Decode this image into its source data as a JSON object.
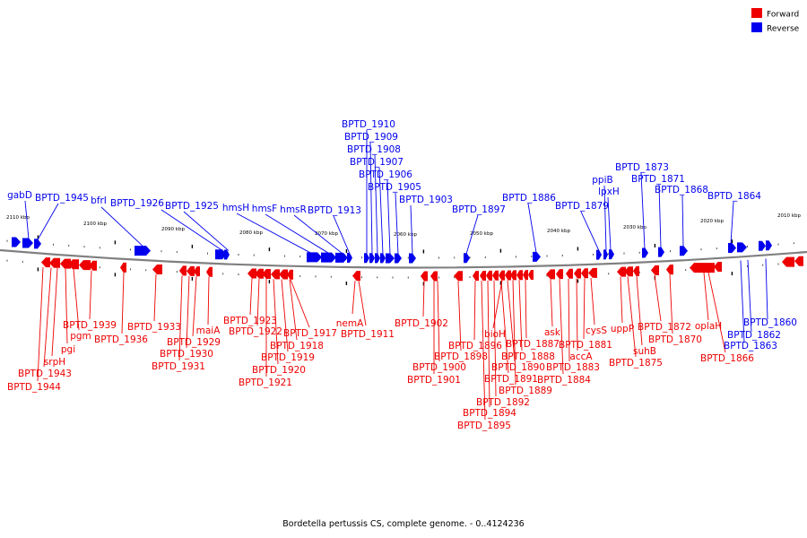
{
  "caption": "Bordetella pertussis CS, complete genome. - 0..4124236",
  "legend": {
    "forward_label": "Forward",
    "reverse_label": "Reverse",
    "forward_color": "#ee0000",
    "reverse_color": "#0000ee"
  },
  "colors": {
    "forward": "#ee0000",
    "reverse": "#0000ee",
    "backbone": "#808080"
  },
  "ticks": [
    "2110 kbp",
    "2100 kbp",
    "2090 kbp",
    "2080 kbp",
    "2070 kbp",
    "2060 kbp",
    "2050 kbp",
    "2040 kbp",
    "2030 kbp",
    "2020 kbp",
    "2010 kbp"
  ],
  "reverse_labels": [
    "gabD",
    "BPTD_1945",
    "bfrI",
    "BPTD_1926",
    "BPTD_1925",
    "hmsH",
    "hmsF",
    "hmsR",
    "BPTD_1913",
    "BPTD_1910",
    "BPTD_1909",
    "BPTD_1908",
    "BPTD_1907",
    "BPTD_1906",
    "BPTD_1905",
    "BPTD_1903",
    "BPTD_1897",
    "BPTD_1886",
    "BPTD_1879",
    "ppiB",
    "lpxH",
    "BPTD_1873",
    "BPTD_1871",
    "BPTD_1868",
    "BPTD_1864",
    "BPTD_1860",
    "BPTD_1862",
    "BPTD_1863"
  ],
  "forward_labels": [
    "BPTD_1944",
    "BPTD_1943",
    "srpH",
    "pgi",
    "pgm",
    "BPTD_1939",
    "BPTD_1936",
    "BPTD_1933",
    "BPTD_1931",
    "BPTD_1930",
    "BPTD_1929",
    "maiA",
    "BPTD_1923",
    "BPTD_1922",
    "BPTD_1921",
    "BPTD_1920",
    "BPTD_1919",
    "BPTD_1918",
    "BPTD_1917",
    "nemA",
    "BPTD_1911",
    "BPTD_1902",
    "BPTD_1901",
    "BPTD_1900",
    "BPTD_1898",
    "BPTD_1896",
    "BPTD_1895",
    "BPTD_1894",
    "BPTD_1892",
    "BPTD_1891",
    "BPTD_1890",
    "bioH",
    "BPTD_1889",
    "BPTD_1888",
    "BPTD_1887",
    "ask",
    "BPTD_1884",
    "BPTD_1883",
    "accA",
    "BPTD_1881",
    "cysS",
    "uppP",
    "BPTD_1875",
    "suhB",
    "BPTD_1872",
    "BPTD_1870",
    "BPTD_1866",
    "oplaH"
  ]
}
